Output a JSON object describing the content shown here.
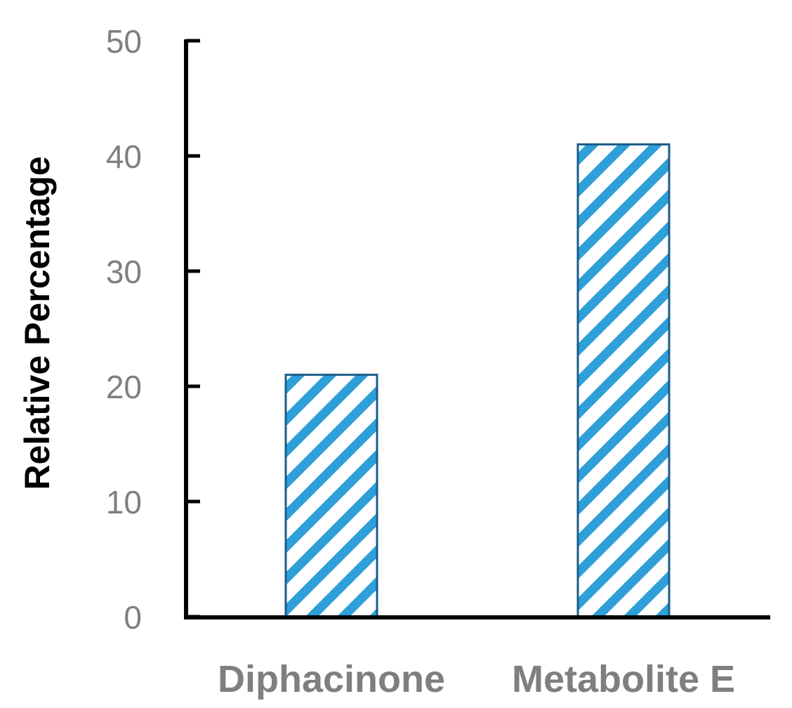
{
  "chart_data": {
    "type": "bar",
    "title": "",
    "xlabel": "",
    "ylabel": "Relative Percentage",
    "categories": [
      "Diphacinone",
      "Metabolite E"
    ],
    "values": [
      21,
      41
    ],
    "ylim": [
      0,
      50
    ],
    "yticks": [
      0,
      10,
      20,
      30,
      40,
      50
    ],
    "ytick_labels": [
      "0",
      "10",
      "20",
      "30",
      "40",
      "50"
    ],
    "grid": false,
    "legend": "none",
    "bar_fill_pattern": "diagonal-stripes",
    "colors": {
      "bar_stripe": "#2e9fd9",
      "bar_outline": "#1a5c8a",
      "axis": "#000000",
      "tick_label": "#7f7f7f",
      "category_label": "#7f7f7f",
      "axis_title": "#000000"
    }
  }
}
